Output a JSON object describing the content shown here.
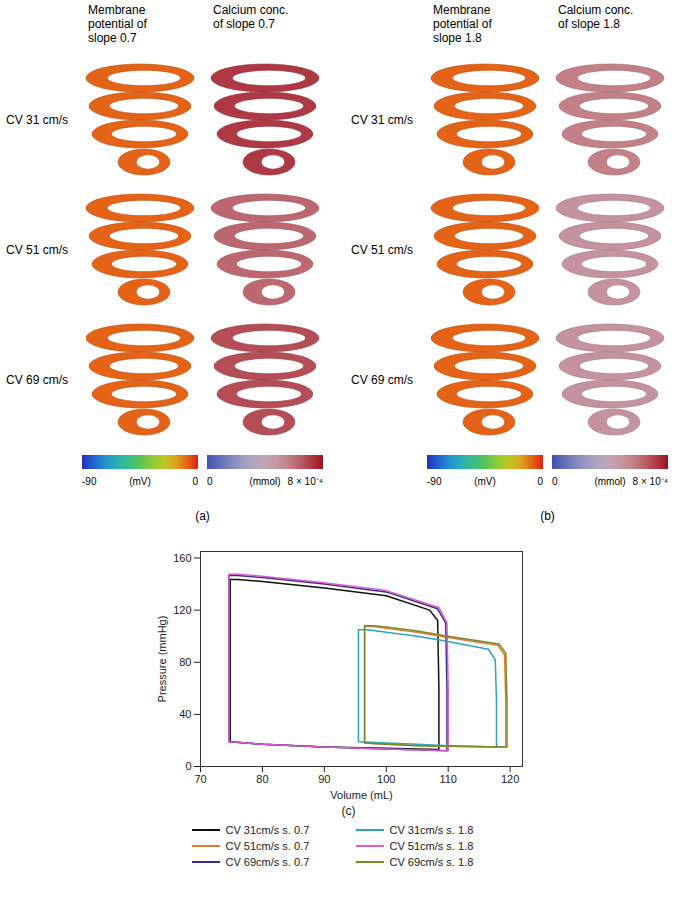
{
  "panels": [
    {
      "label": "(a)",
      "row_labels": [
        "CV 31 cm/s",
        "CV 51 cm/s",
        "CV 69 cm/s"
      ],
      "columns": [
        {
          "header": "Membrane potential of slope 0.7",
          "colorbar": "membrane",
          "values": [
            -8,
            -8,
            -8
          ]
        },
        {
          "header": "Calcium conc. of slope 0.7",
          "colorbar": "calcium",
          "values": [
            0.00072,
            0.00062,
            0.00068
          ]
        }
      ]
    },
    {
      "label": "(b)",
      "row_labels": [
        "CV 31 cm/s",
        "CV 51 cm/s",
        "CV 69 cm/s"
      ],
      "columns": [
        {
          "header": "Membrane potential of slope 1.8",
          "colorbar": "membrane",
          "values": [
            -8,
            -8,
            -8
          ]
        },
        {
          "header": "Calcium conc. of slope 1.8",
          "colorbar": "calcium",
          "values": [
            0.00056,
            0.0005,
            0.0005
          ]
        }
      ]
    }
  ],
  "colorbars": {
    "membrane": {
      "min": -90,
      "max": 0,
      "min_label": "-90",
      "max_label": "0",
      "unit": "(mV)",
      "colors": [
        "#2030c0",
        "#20b8e8",
        "#40c040",
        "#f0e020",
        "#e02010"
      ]
    },
    "calcium": {
      "min": 0,
      "max": 0.0008,
      "min_label": "0",
      "max_label": "8 × 10⁻⁴",
      "unit": "(mmol)",
      "colors": [
        "#4050b0",
        "#e8e0dc",
        "#a01020"
      ]
    }
  },
  "chart_panel_label": "(c)",
  "chart_data": {
    "type": "line",
    "x_label": "Volume (mL)",
    "y_label": "Pressure (mmHg)",
    "xlim": [
      70,
      122
    ],
    "ylim": [
      0,
      165
    ],
    "xticks": [
      70,
      80,
      90,
      100,
      110,
      120
    ],
    "yticks": [
      0,
      40,
      80,
      120,
      160
    ],
    "grid": false,
    "series": [
      {
        "name": "CV 31cm/s s. 0.7",
        "color": "#111111",
        "x": [
          108.5,
          108.5,
          108.3,
          107,
          100,
          90,
          80,
          76,
          74.8,
          74.8,
          74.8,
          80,
          90,
          100,
          108.5
        ],
        "values": [
          13,
          60,
          112,
          120,
          131,
          137,
          142,
          143.5,
          143.5,
          80,
          19,
          17,
          15,
          14,
          13
        ]
      },
      {
        "name": "CV 51cm/s s. 0.7",
        "color": "#e07a30",
        "x": [
          119.3,
          119.3,
          119.1,
          118,
          110,
          105,
          100,
          98,
          96.5,
          96.5,
          96.5,
          100,
          105,
          110,
          119.3
        ],
        "values": [
          15,
          50,
          86,
          93,
          99,
          103,
          106,
          107.5,
          107.5,
          60,
          18,
          17,
          16,
          15.5,
          15
        ]
      },
      {
        "name": "CV 69cm/s s. 0.7",
        "color": "#3a2a8c",
        "x": [
          109.8,
          109.8,
          109.6,
          108.3,
          100,
          90,
          80,
          76,
          74.6,
          74.6,
          74.6,
          80,
          90,
          100,
          109.8
        ],
        "values": [
          12,
          60,
          110,
          121,
          134,
          140,
          145,
          146.5,
          146.5,
          80,
          19,
          17,
          15,
          13.5,
          12
        ]
      },
      {
        "name": "CV 31cm/s s. 1.8",
        "color": "#2aa6b8",
        "x": [
          117.8,
          117.8,
          117.6,
          116.5,
          110,
          105,
          100,
          97,
          95.5,
          95.5,
          95.5,
          100,
          105,
          110,
          117.8
        ],
        "values": [
          15,
          50,
          82,
          90,
          96,
          100,
          103,
          105,
          105,
          60,
          19,
          18,
          17,
          16,
          15
        ]
      },
      {
        "name": "CV 51cm/s s. 1.8",
        "color": "#d85ed0",
        "x": [
          110,
          110,
          109.8,
          108.5,
          100,
          90,
          80,
          76,
          74.6,
          74.6,
          74.6,
          80,
          90,
          100,
          110
        ],
        "values": [
          12,
          60,
          110,
          122,
          135,
          141,
          146,
          147.5,
          147.5,
          80,
          19,
          17,
          15,
          13.5,
          12
        ]
      },
      {
        "name": "CV 69cm/s s. 1.8",
        "color": "#7a8a2a",
        "x": [
          119.5,
          119.5,
          119.3,
          118.2,
          110,
          105,
          100,
          98,
          96.5,
          96.5,
          96.5,
          100,
          105,
          110,
          119.5
        ],
        "values": [
          15,
          50,
          87,
          94,
          100,
          104,
          107,
          108,
          108,
          60,
          18,
          17,
          16,
          15.5,
          15
        ]
      }
    ]
  }
}
